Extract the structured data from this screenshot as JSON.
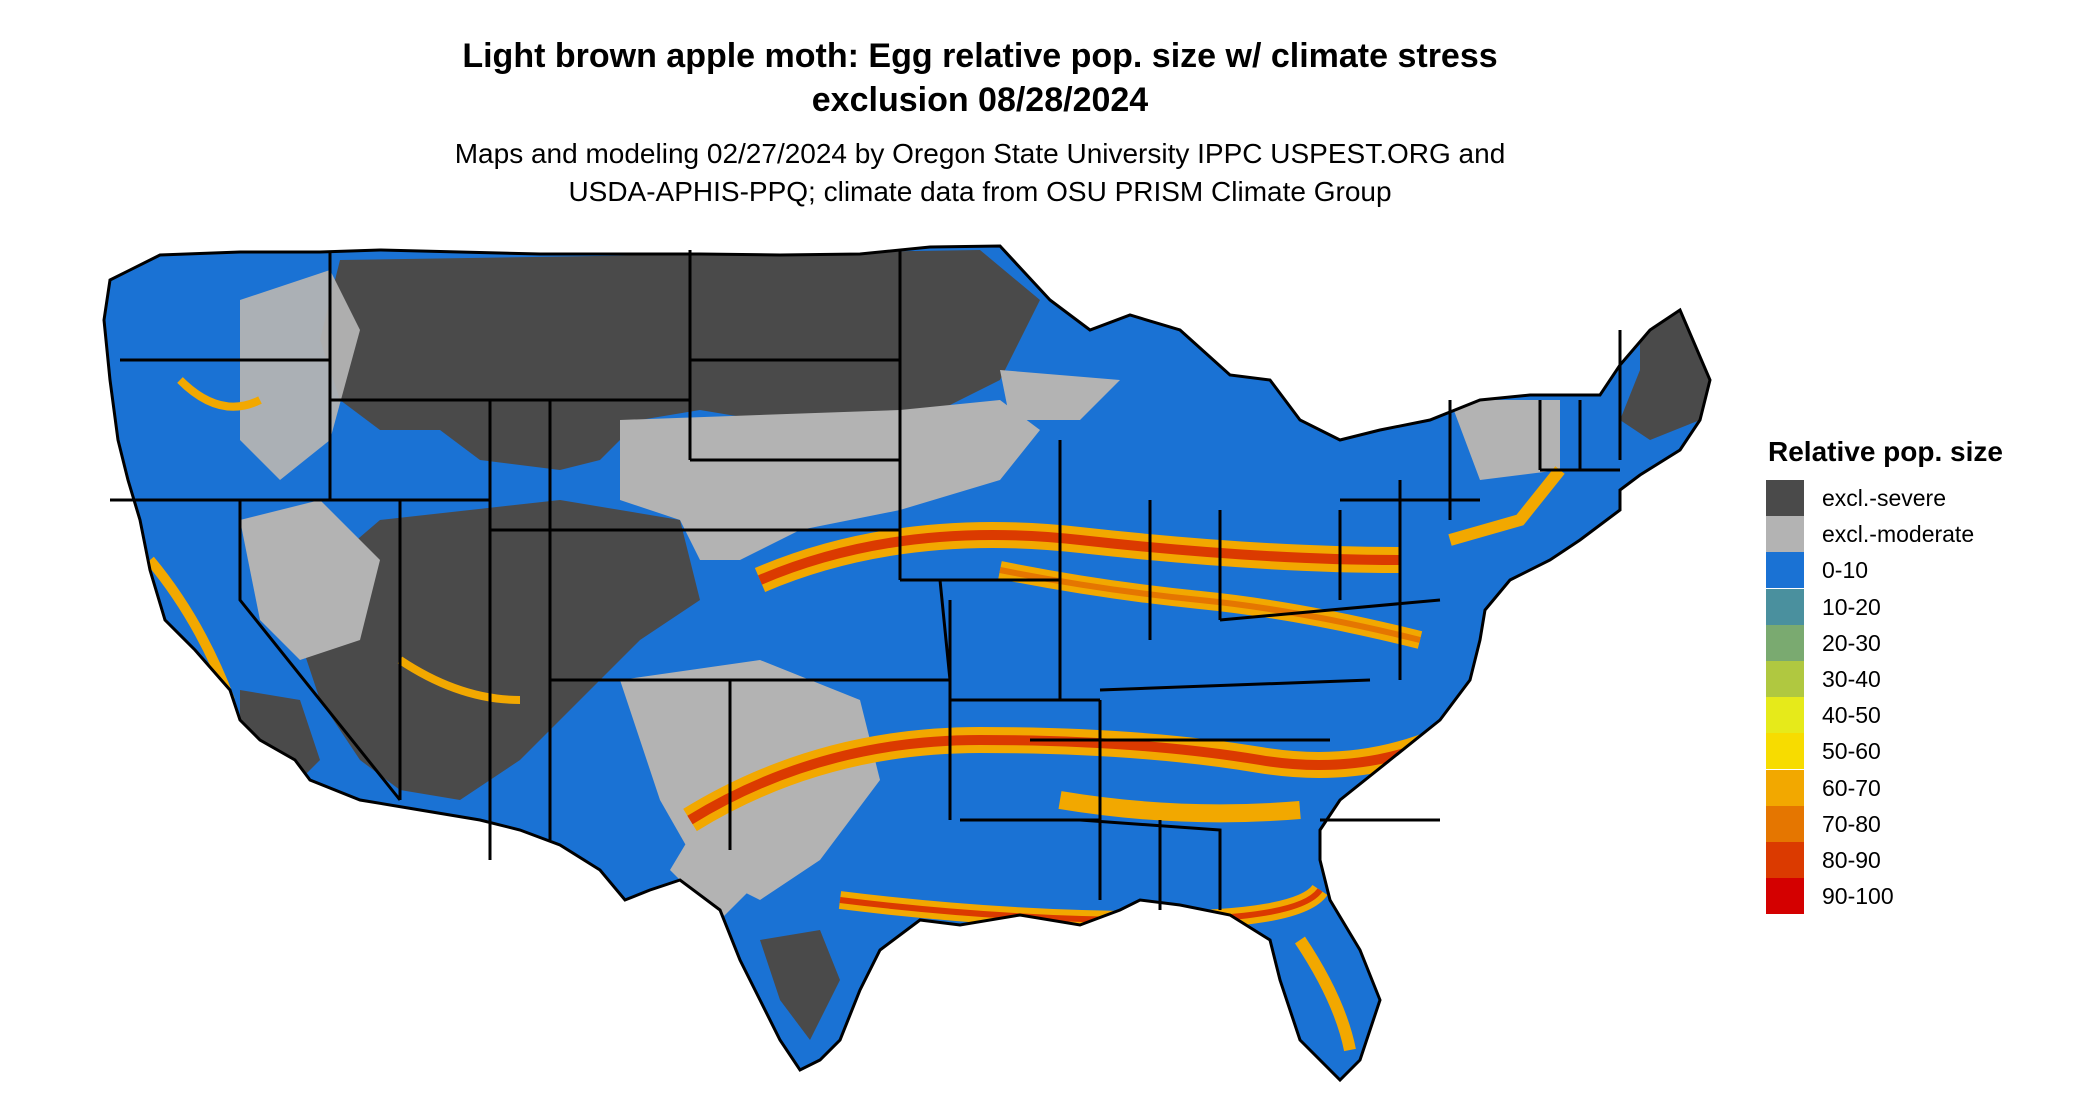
{
  "title_line1": "Light brown apple moth: Egg relative pop. size w/ climate stress",
  "title_line2": "exclusion 08/28/2024",
  "subtitle_line1": "Maps and modeling 02/27/2024 by Oregon State University IPPC USPEST.ORG and",
  "subtitle_line2": "USDA-APHIS-PPQ; climate data from OSU PRISM Climate Group",
  "legend": {
    "title": "Relative pop. size",
    "items": [
      {
        "label": "excl.-severe",
        "color": "#4a4a4a"
      },
      {
        "label": "excl.-moderate",
        "color": "#b3b3b3"
      },
      {
        "label": "0-10",
        "color": "#1a72d4"
      },
      {
        "label": "10-20",
        "color": "#4a909e"
      },
      {
        "label": "20-30",
        "color": "#7aaa70"
      },
      {
        "label": "30-40",
        "color": "#b0c840"
      },
      {
        "label": "40-50",
        "color": "#e6ea1a"
      },
      {
        "label": "50-60",
        "color": "#f7dc00"
      },
      {
        "label": "60-70",
        "color": "#f2a800"
      },
      {
        "label": "70-80",
        "color": "#e57600"
      },
      {
        "label": "80-90",
        "color": "#db3a00"
      },
      {
        "label": "90-100",
        "color": "#d40000"
      }
    ]
  }
}
